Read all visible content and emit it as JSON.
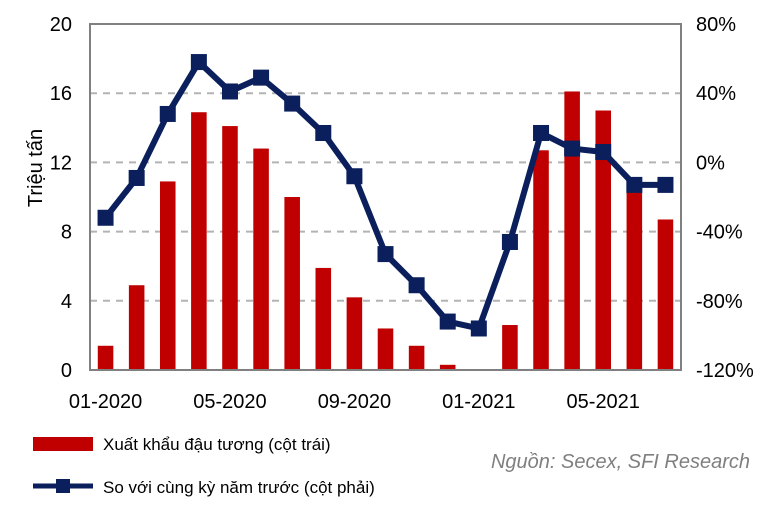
{
  "chart_data": {
    "type": "bar",
    "categories": [
      "01-2020",
      "02-2020",
      "03-2020",
      "04-2020",
      "05-2020",
      "06-2020",
      "07-2020",
      "08-2020",
      "09-2020",
      "10-2020",
      "11-2020",
      "12-2020",
      "01-2021",
      "02-2021",
      "03-2021",
      "04-2021",
      "05-2021",
      "06-2021",
      "07-2021"
    ],
    "x_tick_labels": [
      "01-2020",
      "05-2020",
      "09-2020",
      "01-2021",
      "05-2021"
    ],
    "series": [
      {
        "name": "Xuất khẩu đậu tương (cột trái)",
        "type": "bar",
        "axis": "left",
        "color": "#c00000",
        "values": [
          1.4,
          4.9,
          10.9,
          14.9,
          14.1,
          12.8,
          10.0,
          5.9,
          4.2,
          2.4,
          1.4,
          0.3,
          0.0,
          2.6,
          12.7,
          16.1,
          15.0,
          10.6,
          8.7
        ]
      },
      {
        "name": "So với cùng kỳ năm trước (cột phải)",
        "type": "line",
        "axis": "right",
        "color": "#0a1f5c",
        "values": [
          -32,
          -9,
          28,
          58,
          41,
          49,
          34,
          17,
          -8,
          -53,
          -71,
          -92,
          -96,
          -46,
          17,
          8,
          6,
          -13,
          -13
        ]
      }
    ],
    "ylabel": "Triệu tấn",
    "y_left": {
      "min": 0,
      "max": 20,
      "ticks": [
        "0",
        "4",
        "8",
        "12",
        "16",
        "20"
      ]
    },
    "y_right": {
      "min": -120,
      "max": 80,
      "ticks": [
        "-120%",
        "-80%",
        "-40%",
        "0%",
        "40%",
        "80%"
      ]
    },
    "grid": true,
    "legend_position": "bottom-left",
    "source": "Nguồn: Secex, SFI Research"
  }
}
